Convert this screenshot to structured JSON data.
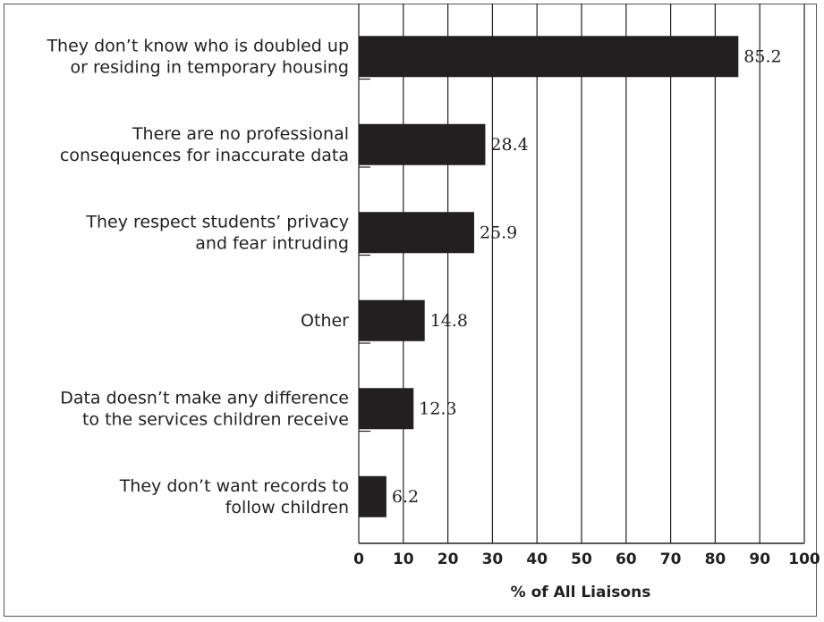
{
  "chart_data": {
    "type": "bar",
    "orientation": "horizontal",
    "title": "",
    "xlabel": "% of All Liaisons",
    "ylabel": "",
    "xlim": [
      0,
      100
    ],
    "xticks": [
      "0",
      "10",
      "20",
      "30",
      "40",
      "50",
      "60",
      "70",
      "80",
      "90",
      "100"
    ],
    "grid": "vertical",
    "bar_color": "#231f20",
    "categories": [
      [
        "They don’t know who is doubled up",
        "or residing in temporary housing"
      ],
      [
        "There are no professional",
        "consequences for inaccurate data"
      ],
      [
        "They respect students’ privacy",
        "and fear intruding"
      ],
      [
        "Other"
      ],
      [
        "Data doesn’t make any difference",
        "to the services children receive"
      ],
      [
        "They don’t want records to",
        "follow children"
      ]
    ],
    "values": [
      85.2,
      28.4,
      25.9,
      14.8,
      12.3,
      6.2
    ],
    "value_labels": [
      "85.2",
      "28.4",
      "25.9",
      "14.8",
      "12.3",
      "6.2"
    ]
  }
}
